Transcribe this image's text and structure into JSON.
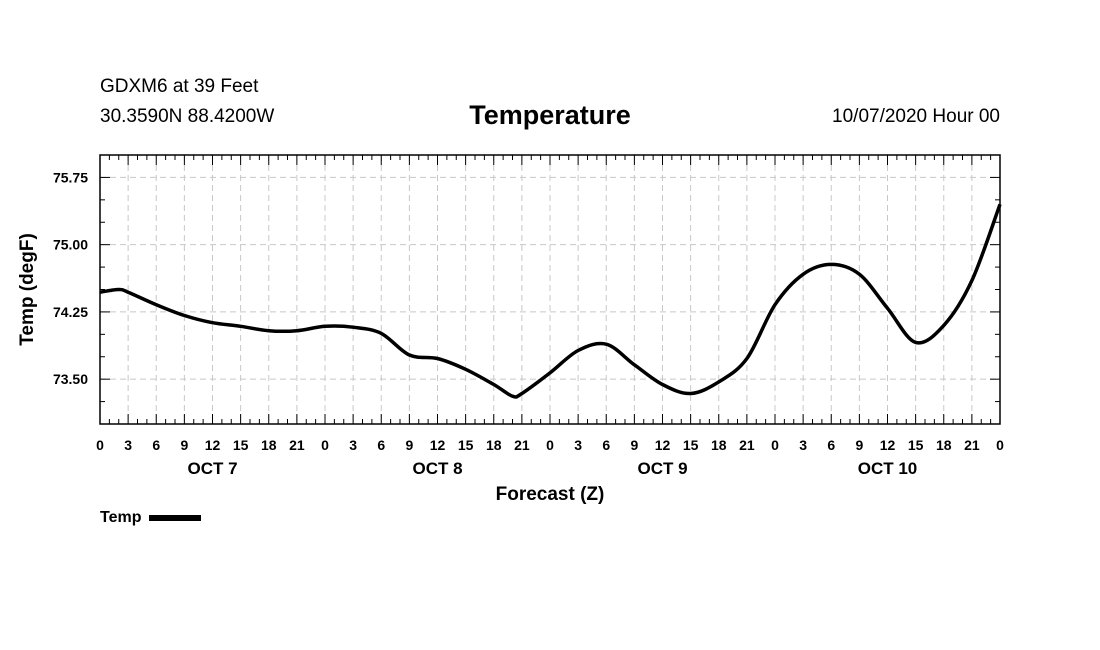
{
  "header": {
    "station": "GDXM6 at 39 Feet",
    "coords": "30.3590N 88.4200W",
    "title": "Temperature",
    "run": "10/07/2020 Hour 00"
  },
  "legend": {
    "label": "Temp"
  },
  "colors": {
    "line": "#000000",
    "grid": "#c8c8c8",
    "axis": "#000000"
  },
  "chart_data": {
    "type": "line",
    "title": "Temperature",
    "xlabel": "Forecast (Z)",
    "ylabel": "Temp (degF)",
    "ylim": [
      73.0,
      76.0
    ],
    "xlim": [
      0,
      96
    ],
    "yticks": [
      73.5,
      74.25,
      75.0,
      75.75
    ],
    "ytick_labels": [
      "73.50",
      "74.25",
      "75.00",
      "75.75"
    ],
    "xtick_hours": [
      0,
      3,
      6,
      9,
      12,
      15,
      18,
      21,
      24,
      27,
      30,
      33,
      36,
      39,
      42,
      45,
      48,
      51,
      54,
      57,
      60,
      63,
      66,
      69,
      72,
      75,
      78,
      81,
      84,
      87,
      90,
      93,
      96
    ],
    "xtick_labels": [
      "0",
      "3",
      "6",
      "9",
      "12",
      "15",
      "18",
      "21",
      "0",
      "3",
      "6",
      "9",
      "12",
      "15",
      "18",
      "21",
      "0",
      "3",
      "6",
      "9",
      "12",
      "15",
      "18",
      "21",
      "0",
      "3",
      "6",
      "9",
      "12",
      "15",
      "18",
      "21",
      "0"
    ],
    "day_labels": [
      {
        "label": "OCT 7",
        "hour": 12
      },
      {
        "label": "OCT 8",
        "hour": 36
      },
      {
        "label": "OCT 9",
        "hour": 60
      },
      {
        "label": "OCT 10",
        "hour": 84
      }
    ],
    "series": [
      {
        "name": "Temp",
        "x": [
          0,
          2,
          3,
          6,
          9,
          12,
          15,
          18,
          21,
          24,
          27,
          30,
          33,
          36,
          39,
          42,
          44,
          45,
          48,
          51,
          54,
          57,
          60,
          63,
          66,
          69,
          72,
          75,
          78,
          81,
          84,
          87,
          90,
          93,
          96
        ],
        "y": [
          74.47,
          74.5,
          74.47,
          74.33,
          74.21,
          74.13,
          74.09,
          74.04,
          74.04,
          74.09,
          74.08,
          74.01,
          73.77,
          73.73,
          73.61,
          73.44,
          73.31,
          73.34,
          73.57,
          73.82,
          73.89,
          73.66,
          73.44,
          73.34,
          73.47,
          73.73,
          74.33,
          74.67,
          74.78,
          74.67,
          74.29,
          73.91,
          74.1,
          74.6,
          75.45
        ]
      }
    ]
  }
}
